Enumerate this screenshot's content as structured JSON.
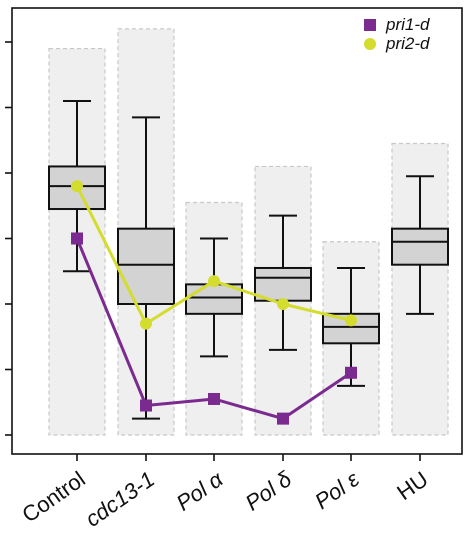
{
  "chart_data": {
    "type": "box",
    "categories": [
      "Control",
      "cdc13-1",
      "Pol α",
      "Pol δ",
      "Pol ε",
      "HU"
    ],
    "categories_italic": [
      false,
      true,
      true,
      true,
      true,
      false
    ],
    "ylim": [
      0,
      6
    ],
    "yticks": [
      0,
      1,
      2,
      3,
      4,
      5,
      6
    ],
    "ytick_labels_visible": false,
    "grid": false,
    "boxes": [
      {
        "category": "Control",
        "min": 2.5,
        "q1": 3.45,
        "median": 3.8,
        "q3": 4.1,
        "max": 5.1,
        "background_max": 5.9
      },
      {
        "category": "cdc13-1",
        "min": 0.25,
        "q1": 2.0,
        "median": 2.6,
        "q3": 3.15,
        "max": 4.85,
        "background_max": 6.2
      },
      {
        "category": "Pol α",
        "min": 1.2,
        "q1": 1.85,
        "median": 2.1,
        "q3": 2.3,
        "max": 3.0,
        "background_max": 3.55
      },
      {
        "category": "Pol δ",
        "min": 1.3,
        "q1": 2.05,
        "median": 2.4,
        "q3": 2.55,
        "max": 3.35,
        "background_max": 4.1
      },
      {
        "category": "Pol ε",
        "min": 0.75,
        "q1": 1.4,
        "median": 1.65,
        "q3": 1.85,
        "max": 2.55,
        "background_max": 2.95
      },
      {
        "category": "HU",
        "min": 1.85,
        "q1": 2.6,
        "median": 2.95,
        "q3": 3.15,
        "max": 3.95,
        "background_max": 4.45
      }
    ],
    "series": [
      {
        "name": "pri1-d",
        "color": "#7b2a8f",
        "marker": "square",
        "x": [
          "Control",
          "cdc13-1",
          "Pol α",
          "Pol δ",
          "Pol ε"
        ],
        "values": [
          3.0,
          0.45,
          0.55,
          0.25,
          0.95
        ]
      },
      {
        "name": "pri2-d",
        "color": "#d4dc2e",
        "marker": "circle",
        "x": [
          "Control",
          "cdc13-1",
          "Pol α",
          "Pol δ",
          "Pol ε"
        ],
        "values": [
          3.8,
          1.7,
          2.35,
          2.0,
          1.75
        ]
      }
    ],
    "legend_position": "top-right"
  }
}
